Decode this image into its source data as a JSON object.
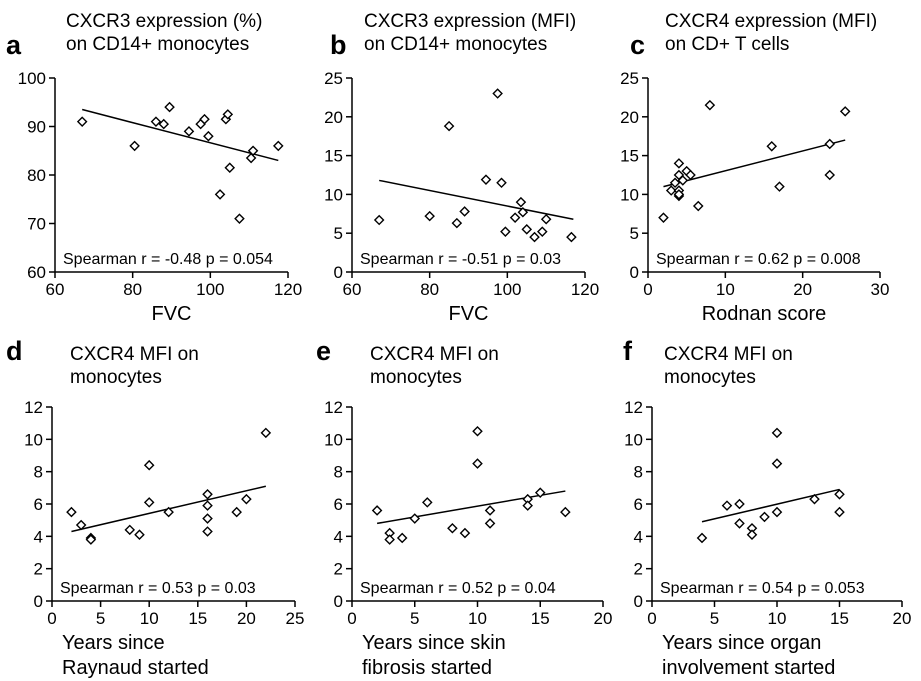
{
  "chart_data": [
    {
      "type": "scatter",
      "panel": "a",
      "title_lines": [
        "CXCR3 expression (%)",
        "on CD14+ monocytes"
      ],
      "xlabel_lines": [
        "FVC"
      ],
      "annotation": "Spearman r = -0.48 p = 0.054",
      "xlim": [
        60,
        120
      ],
      "ylim": [
        60,
        100
      ],
      "xticks": [
        60,
        80,
        100,
        120
      ],
      "yticks": [
        60,
        70,
        80,
        90,
        100
      ],
      "points": [
        [
          67,
          91
        ],
        [
          80.5,
          86
        ],
        [
          86,
          91
        ],
        [
          88,
          90.5
        ],
        [
          89.5,
          94
        ],
        [
          94.5,
          89
        ],
        [
          97.5,
          90.5
        ],
        [
          98.5,
          91.5
        ],
        [
          99.5,
          88
        ],
        [
          102.5,
          76
        ],
        [
          104,
          91.5
        ],
        [
          104.5,
          92.5
        ],
        [
          105,
          81.5
        ],
        [
          107.5,
          71
        ],
        [
          110.5,
          83.5
        ],
        [
          111,
          85
        ],
        [
          117.5,
          86
        ]
      ],
      "fit_line": [
        [
          67,
          93.5
        ],
        [
          117.5,
          83
        ]
      ]
    },
    {
      "type": "scatter",
      "panel": "b",
      "title_lines": [
        "CXCR3 expression (MFI)",
        "on CD14+ monocytes"
      ],
      "xlabel_lines": [
        "FVC"
      ],
      "annotation": "Spearman r = -0.51 p = 0.03",
      "xlim": [
        60,
        120
      ],
      "ylim": [
        0,
        25
      ],
      "xticks": [
        60,
        80,
        100,
        120
      ],
      "yticks": [
        0,
        5,
        10,
        15,
        20,
        25
      ],
      "points": [
        [
          67,
          6.7
        ],
        [
          80,
          7.2
        ],
        [
          85,
          18.8
        ],
        [
          87,
          6.3
        ],
        [
          89,
          7.8
        ],
        [
          94.5,
          11.9
        ],
        [
          97.5,
          23
        ],
        [
          98.5,
          11.5
        ],
        [
          99.5,
          5.2
        ],
        [
          102,
          7
        ],
        [
          103.5,
          9
        ],
        [
          104,
          7.7
        ],
        [
          105,
          5.5
        ],
        [
          107,
          4.5
        ],
        [
          109,
          5.2
        ],
        [
          110,
          6.8
        ],
        [
          116.5,
          4.5
        ]
      ],
      "fit_line": [
        [
          67,
          11.8
        ],
        [
          117,
          6.8
        ]
      ]
    },
    {
      "type": "scatter",
      "panel": "c",
      "title_lines": [
        "CXCR4 expression (MFI)",
        "on CD+ T cells"
      ],
      "xlabel_lines": [
        "Rodnan score"
      ],
      "annotation": "Spearman r = 0.62 p = 0.008",
      "xlim": [
        0,
        30
      ],
      "ylim": [
        0,
        25
      ],
      "xticks": [
        0,
        10,
        20,
        30
      ],
      "yticks": [
        0,
        5,
        10,
        15,
        20,
        25
      ],
      "points": [
        [
          2,
          7
        ],
        [
          3,
          10.5
        ],
        [
          3.5,
          11.5
        ],
        [
          4,
          14
        ],
        [
          4,
          12.5
        ],
        [
          4,
          10.5
        ],
        [
          4,
          9.8
        ],
        [
          4,
          10
        ],
        [
          4.5,
          11.8
        ],
        [
          5,
          13
        ],
        [
          5.5,
          12.5
        ],
        [
          6.5,
          8.5
        ],
        [
          8,
          21.5
        ],
        [
          16,
          16.2
        ],
        [
          17,
          11
        ],
        [
          23.5,
          16.5
        ],
        [
          23.5,
          12.5
        ],
        [
          25.5,
          20.7
        ]
      ],
      "fit_line": [
        [
          2,
          11
        ],
        [
          25.5,
          17
        ]
      ]
    },
    {
      "type": "scatter",
      "panel": "d",
      "title_lines": [
        "CXCR4 MFI on",
        "monocytes"
      ],
      "xlabel_lines": [
        "Years since",
        "Raynaud started"
      ],
      "annotation": "Spearman r = 0.53 p = 0.03",
      "xlim": [
        0,
        25
      ],
      "ylim": [
        0,
        12
      ],
      "xticks": [
        0,
        5,
        10,
        15,
        20,
        25
      ],
      "yticks": [
        0,
        2,
        4,
        6,
        8,
        10,
        12
      ],
      "points": [
        [
          2,
          5.5
        ],
        [
          3,
          4.7
        ],
        [
          4,
          3.9
        ],
        [
          4,
          3.8
        ],
        [
          8,
          4.4
        ],
        [
          9,
          4.1
        ],
        [
          10,
          8.4
        ],
        [
          10,
          6.1
        ],
        [
          12,
          5.5
        ],
        [
          16,
          6.6
        ],
        [
          16,
          5.9
        ],
        [
          16,
          5.1
        ],
        [
          16,
          4.3
        ],
        [
          19,
          5.5
        ],
        [
          20,
          6.3
        ],
        [
          22,
          10.4
        ]
      ],
      "fit_line": [
        [
          2,
          4.3
        ],
        [
          22,
          7.1
        ]
      ]
    },
    {
      "type": "scatter",
      "panel": "e",
      "title_lines": [
        "CXCR4 MFI on",
        "monocytes"
      ],
      "xlabel_lines": [
        "Years since skin",
        "fibrosis started"
      ],
      "annotation": "Spearman r = 0.52 p = 0.04",
      "xlim": [
        0,
        20
      ],
      "ylim": [
        0,
        12
      ],
      "xticks": [
        0,
        5,
        10,
        15,
        20
      ],
      "yticks": [
        0,
        2,
        4,
        6,
        8,
        10,
        12
      ],
      "points": [
        [
          2,
          5.6
        ],
        [
          3,
          4.2
        ],
        [
          3,
          3.8
        ],
        [
          4,
          3.9
        ],
        [
          5,
          5.1
        ],
        [
          6,
          6.1
        ],
        [
          8,
          4.5
        ],
        [
          9,
          4.2
        ],
        [
          10,
          10.5
        ],
        [
          10,
          8.5
        ],
        [
          11,
          5.6
        ],
        [
          11,
          4.8
        ],
        [
          14,
          6.3
        ],
        [
          14,
          5.9
        ],
        [
          15,
          6.7
        ],
        [
          17,
          5.5
        ]
      ],
      "fit_line": [
        [
          2,
          4.8
        ],
        [
          17,
          6.8
        ]
      ]
    },
    {
      "type": "scatter",
      "panel": "f",
      "title_lines": [
        "CXCR4 MFI on",
        "monocytes"
      ],
      "xlabel_lines": [
        "Years since organ",
        "involvement started"
      ],
      "annotation": "Spearman r = 0.54 p = 0.053",
      "xlim": [
        0,
        20
      ],
      "ylim": [
        0,
        12
      ],
      "xticks": [
        0,
        5,
        10,
        15,
        20
      ],
      "yticks": [
        0,
        2,
        4,
        6,
        8,
        10,
        12
      ],
      "points": [
        [
          4,
          3.9
        ],
        [
          6,
          5.9
        ],
        [
          7,
          6
        ],
        [
          7,
          4.8
        ],
        [
          8,
          4.5
        ],
        [
          8,
          4.1
        ],
        [
          9,
          5.2
        ],
        [
          10,
          10.4
        ],
        [
          10,
          8.5
        ],
        [
          10,
          5.5
        ],
        [
          13,
          6.3
        ],
        [
          15,
          6.6
        ],
        [
          15,
          5.5
        ]
      ],
      "fit_line": [
        [
          4,
          4.9
        ],
        [
          15,
          6.9
        ]
      ]
    }
  ]
}
